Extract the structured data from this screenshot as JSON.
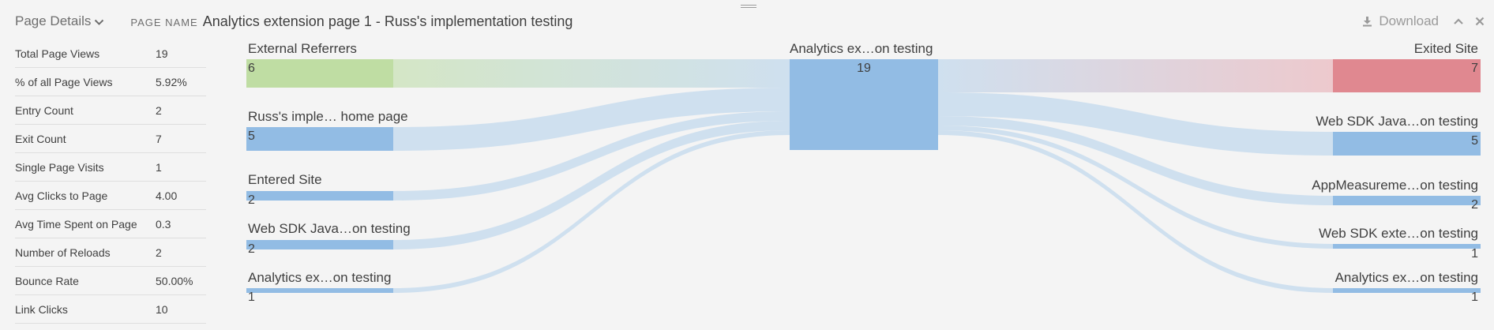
{
  "header": {
    "page_details_label": "Page Details",
    "page_name_label": "PAGE NAME",
    "page_name_value": "Analytics extension page 1 - Russ's implementation testing",
    "download_label": "Download"
  },
  "metrics": [
    {
      "label": "Total Page Views",
      "value": "19"
    },
    {
      "label": "% of all Page Views",
      "value": "5.92%"
    },
    {
      "label": "Entry Count",
      "value": "2"
    },
    {
      "label": "Exit Count",
      "value": "7"
    },
    {
      "label": "Single Page Visits",
      "value": "1"
    },
    {
      "label": "Avg Clicks to Page",
      "value": "4.00"
    },
    {
      "label": "Avg Time Spent on Page",
      "value": "0.3"
    },
    {
      "label": "Number of Reloads",
      "value": "2"
    },
    {
      "label": "Bounce Rate",
      "value": "50.00%"
    },
    {
      "label": "Link Clicks",
      "value": "10"
    }
  ],
  "flow": {
    "center": {
      "label": "Analytics ex…on testing",
      "count": "19"
    },
    "incoming": [
      {
        "label": "External Referrers",
        "count": "6"
      },
      {
        "label": "Russ's imple… home page",
        "count": "5"
      },
      {
        "label": "Entered Site",
        "count": "2"
      },
      {
        "label": "Web SDK Java…on testing",
        "count": "2"
      },
      {
        "label": "Analytics ex…on testing",
        "count": "1"
      }
    ],
    "outgoing": [
      {
        "label": "Exited Site",
        "count": "7"
      },
      {
        "label": "Web SDK Java…on testing",
        "count": "5"
      },
      {
        "label": "AppMeasureme…on testing",
        "count": "2"
      },
      {
        "label": "Web SDK exte…on testing",
        "count": "1"
      },
      {
        "label": "Analytics ex…on testing",
        "count": "1"
      }
    ]
  },
  "colors": {
    "node_blue": "#92bce4",
    "link_blue": "#cfe0ef",
    "external_green": "#bfdda3",
    "exit_red": "#e08890",
    "exit_link": "#edc9cd"
  }
}
